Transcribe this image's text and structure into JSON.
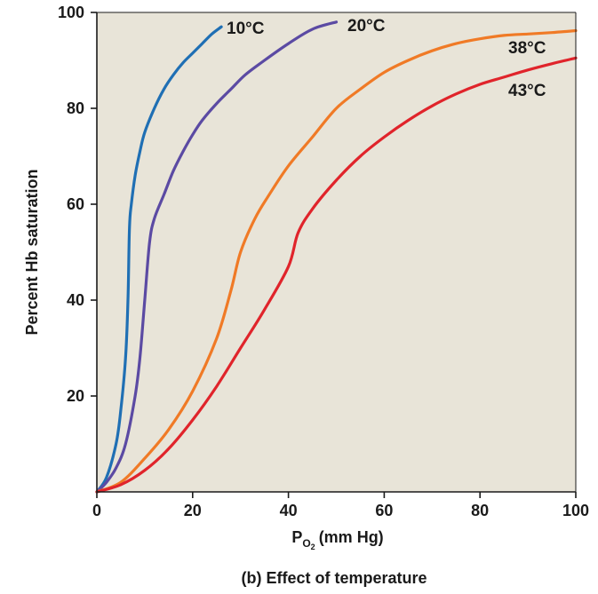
{
  "chart_data": {
    "type": "line",
    "caption": "(b) Effect of temperature",
    "ylabel": "Percent Hb saturation",
    "xlabel": {
      "main": "P",
      "subscript_main": "O",
      "subscript_sub": "2",
      "unit": "(mm Hg)"
    },
    "xlim": [
      0,
      100
    ],
    "ylim": [
      0,
      100
    ],
    "xticks": [
      "0",
      "20",
      "40",
      "60",
      "80",
      "100"
    ],
    "yticks": [
      "20",
      "40",
      "60",
      "80",
      "100"
    ],
    "grid": false,
    "background_color": "#e8e4d8",
    "series": [
      {
        "name": "10°C",
        "color": "#1f6fb4",
        "x": [
          0,
          2,
          4,
          5,
          6,
          6.5,
          6.8,
          7.2,
          8,
          9,
          10,
          12,
          14,
          16,
          18,
          20,
          22,
          24,
          26
        ],
        "y": [
          0,
          3,
          10,
          17,
          28,
          40,
          55,
          60,
          66,
          71,
          75,
          80,
          84,
          87,
          89.5,
          91.5,
          93.5,
          95.5,
          97
        ]
      },
      {
        "name": "20°C",
        "color": "#5b4aa3",
        "x": [
          0,
          2,
          4,
          6,
          8,
          9,
          10,
          11,
          12,
          14,
          16,
          18,
          20,
          22,
          25,
          28,
          31,
          35,
          40,
          45,
          50
        ],
        "y": [
          0,
          2,
          5,
          10,
          20,
          28,
          40,
          52,
          57,
          62,
          67,
          71,
          74.5,
          77.5,
          81,
          84,
          87,
          90,
          93.5,
          96.5,
          98
        ]
      },
      {
        "name": "38°C",
        "color": "#f07a26",
        "x": [
          0,
          5,
          10,
          15,
          20,
          25,
          28,
          30,
          33,
          36,
          40,
          45,
          50,
          55,
          60,
          65,
          70,
          75,
          80,
          85,
          90,
          95,
          100
        ],
        "y": [
          0,
          2,
          7,
          13,
          21,
          32,
          42,
          50,
          57,
          62,
          68,
          74,
          80,
          84,
          87.5,
          90,
          92,
          93.5,
          94.5,
          95.2,
          95.5,
          95.8,
          96.2
        ]
      },
      {
        "name": "43°C",
        "color": "#e0242b",
        "x": [
          0,
          5,
          10,
          15,
          20,
          25,
          30,
          35,
          40,
          42,
          45,
          50,
          55,
          60,
          65,
          70,
          75,
          80,
          85,
          90,
          95,
          100
        ],
        "y": [
          0,
          1.5,
          4.5,
          9,
          15,
          22,
          30,
          38,
          47,
          54,
          59,
          65,
          70,
          74,
          77.5,
          80.5,
          83,
          85,
          86.5,
          88,
          89.3,
          90.5
        ]
      }
    ]
  }
}
